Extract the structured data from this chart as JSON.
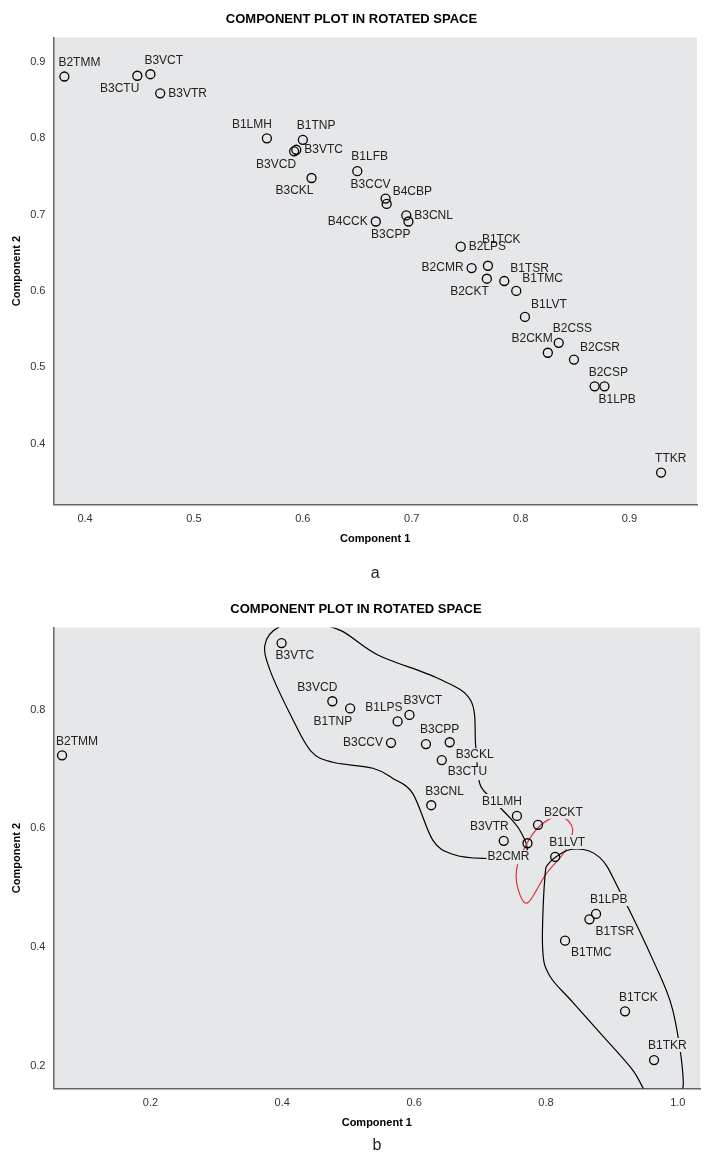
{
  "chart_data": [
    {
      "type": "scatter",
      "title": "COMPONENT PLOT IN ROTATED SPACE",
      "xlabel": "Component 1",
      "ylabel": "Component 2",
      "annotations": [
        "a"
      ],
      "marker": "circle",
      "xlim": [
        0.371,
        0.962
      ],
      "ylim": [
        0.32,
        0.932
      ],
      "xticks": [
        0.4,
        0.5,
        0.6,
        0.7,
        0.8,
        0.9
      ],
      "yticks": [
        0.4,
        0.5,
        0.6,
        0.7,
        0.8,
        0.9
      ],
      "series": [
        {
          "name": "B2TMM",
          "color": "#000000",
          "x": [
            0.381
          ],
          "values": [
            0.881
          ]
        },
        {
          "name": "B3CTU",
          "color": "#000000",
          "x": [
            0.448
          ],
          "values": [
            0.882
          ]
        },
        {
          "name": "B3VCT",
          "color": "#000000",
          "x": [
            0.46
          ],
          "values": [
            0.884
          ]
        },
        {
          "name": "B3VTR",
          "color": "#000000",
          "x": [
            0.469
          ],
          "values": [
            0.859
          ]
        },
        {
          "name": "B1LMH",
          "color": "#000000",
          "x": [
            0.567
          ],
          "values": [
            0.8
          ]
        },
        {
          "name": "B1TNP",
          "color": "#000000",
          "x": [
            0.6
          ],
          "values": [
            0.798
          ]
        },
        {
          "name": "B3VCD",
          "color": "#000000",
          "x": [
            0.592
          ],
          "values": [
            0.783
          ]
        },
        {
          "name": "B3VTC",
          "color": "#000000",
          "x": [
            0.594
          ],
          "values": [
            0.785
          ]
        },
        {
          "name": "B1LFB",
          "color": "#000000",
          "x": [
            0.65
          ],
          "values": [
            0.757
          ]
        },
        {
          "name": "B3CKL",
          "color": "#000000",
          "x": [
            0.608
          ],
          "values": [
            0.748
          ]
        },
        {
          "name": "B3CCV",
          "color": "#000000",
          "x": [
            0.676
          ],
          "values": [
            0.721
          ]
        },
        {
          "name": "B4CBP",
          "color": "#000000",
          "x": [
            0.677
          ],
          "values": [
            0.714
          ]
        },
        {
          "name": "B4CCK",
          "color": "#000000",
          "x": [
            0.667
          ],
          "values": [
            0.691
          ]
        },
        {
          "name": "B3CNL",
          "color": "#000000",
          "x": [
            0.695
          ],
          "values": [
            0.699
          ]
        },
        {
          "name": "B3CPP",
          "color": "#000000",
          "x": [
            0.697
          ],
          "values": [
            0.691
          ]
        },
        {
          "name": "B2LPS",
          "color": "#000000",
          "x": [
            0.745
          ],
          "values": [
            0.658
          ]
        },
        {
          "name": "B1TCK",
          "color": "#000000",
          "x": [
            0.77
          ],
          "values": [
            0.633
          ]
        },
        {
          "name": "B2CMR",
          "color": "#000000",
          "x": [
            0.755
          ],
          "values": [
            0.63
          ]
        },
        {
          "name": "B1TSR",
          "color": "#000000",
          "x": [
            0.785
          ],
          "values": [
            0.613
          ]
        },
        {
          "name": "B1TMC",
          "color": "#000000",
          "x": [
            0.796
          ],
          "values": [
            0.6
          ]
        },
        {
          "name": "B2CKT",
          "color": "#000000",
          "x": [
            0.769
          ],
          "values": [
            0.616
          ]
        },
        {
          "name": "B1LVT",
          "color": "#000000",
          "x": [
            0.804
          ],
          "values": [
            0.566
          ]
        },
        {
          "name": "B2CSS",
          "color": "#000000",
          "x": [
            0.835
          ],
          "values": [
            0.532
          ]
        },
        {
          "name": "B2CKM",
          "color": "#000000",
          "x": [
            0.825
          ],
          "values": [
            0.519
          ]
        },
        {
          "name": "B2CSR",
          "color": "#000000",
          "x": [
            0.849
          ],
          "values": [
            0.51
          ]
        },
        {
          "name": "B2CSP",
          "color": "#000000",
          "x": [
            0.868
          ],
          "values": [
            0.475
          ]
        },
        {
          "name": "B1LPB",
          "color": "#000000",
          "x": [
            0.877
          ],
          "values": [
            0.475
          ]
        },
        {
          "name": "TTKR",
          "color": "#000000",
          "x": [
            0.929
          ],
          "values": [
            0.362
          ]
        }
      ]
    },
    {
      "type": "scatter",
      "title": "COMPONENT PLOT IN ROTATED SPACE",
      "xlabel": "Component 1",
      "ylabel": "Component 2",
      "annotations": [
        "b"
      ],
      "marker": "circle",
      "xlim": [
        0.053,
        1.034
      ],
      "ylim": [
        0.162,
        0.938
      ],
      "xticks": [
        0.2,
        0.4,
        0.6,
        0.8,
        {
          "value": 1,
          "label": "1.0"
        }
      ],
      "yticks": [
        0.2,
        0.4,
        0.6,
        0.8
      ],
      "series": [
        {
          "name": "B2TMM",
          "color": "#000000",
          "x": [
            0.066
          ],
          "values": [
            0.723
          ]
        },
        {
          "name": "B3VTC",
          "color": "#000000",
          "x": [
            0.399
          ],
          "values": [
            0.912
          ]
        },
        {
          "name": "B3VCD",
          "color": "#000000",
          "x": [
            0.476
          ],
          "values": [
            0.814
          ]
        },
        {
          "name": "B1TNP",
          "color": "#000000",
          "x": [
            0.503
          ],
          "values": [
            0.802
          ]
        },
        {
          "name": "B1LPS",
          "color": "#000000",
          "x": [
            0.575
          ],
          "values": [
            0.78
          ]
        },
        {
          "name": "B3VCT",
          "color": "#000000",
          "x": [
            0.593
          ],
          "values": [
            0.791
          ]
        },
        {
          "name": "B3CCV",
          "color": "#000000",
          "x": [
            0.565
          ],
          "values": [
            0.744
          ]
        },
        {
          "name": "B3CPP",
          "color": "#000000",
          "x": [
            0.618
          ],
          "values": [
            0.742
          ]
        },
        {
          "name": "B3CKL",
          "color": "#000000",
          "x": [
            0.654
          ],
          "values": [
            0.745
          ]
        },
        {
          "name": "B3CTU",
          "color": "#000000",
          "x": [
            0.642
          ],
          "values": [
            0.715
          ]
        },
        {
          "name": "B3CNL",
          "color": "#000000",
          "x": [
            0.626
          ],
          "values": [
            0.639
          ]
        },
        {
          "name": "B1LMH",
          "color": "#000000",
          "x": [
            0.756
          ],
          "values": [
            0.621
          ]
        },
        {
          "name": "B2CKT",
          "color": "#000000",
          "x": [
            0.788
          ],
          "values": [
            0.606
          ]
        },
        {
          "name": "B3VTR",
          "color": "#000000",
          "x": [
            0.736
          ],
          "values": [
            0.579
          ]
        },
        {
          "name": "B2CMR",
          "color": "#000000",
          "x": [
            0.772
          ],
          "values": [
            0.575
          ]
        },
        {
          "name": "B1LVT",
          "color": "#000000",
          "x": [
            0.814
          ],
          "values": [
            0.552
          ]
        },
        {
          "name": "B1LPB",
          "color": "#000000",
          "x": [
            0.876
          ],
          "values": [
            0.456
          ]
        },
        {
          "name": "B1TSR",
          "color": "#000000",
          "x": [
            0.866
          ],
          "values": [
            0.447
          ]
        },
        {
          "name": "B1TMC",
          "color": "#000000",
          "x": [
            0.829
          ],
          "values": [
            0.411
          ]
        },
        {
          "name": "B1TCK",
          "color": "#000000",
          "x": [
            0.92
          ],
          "values": [
            0.292
          ]
        },
        {
          "name": "B1TKR",
          "color": "#000000",
          "x": [
            0.964
          ],
          "values": [
            0.21
          ]
        }
      ]
    }
  ]
}
